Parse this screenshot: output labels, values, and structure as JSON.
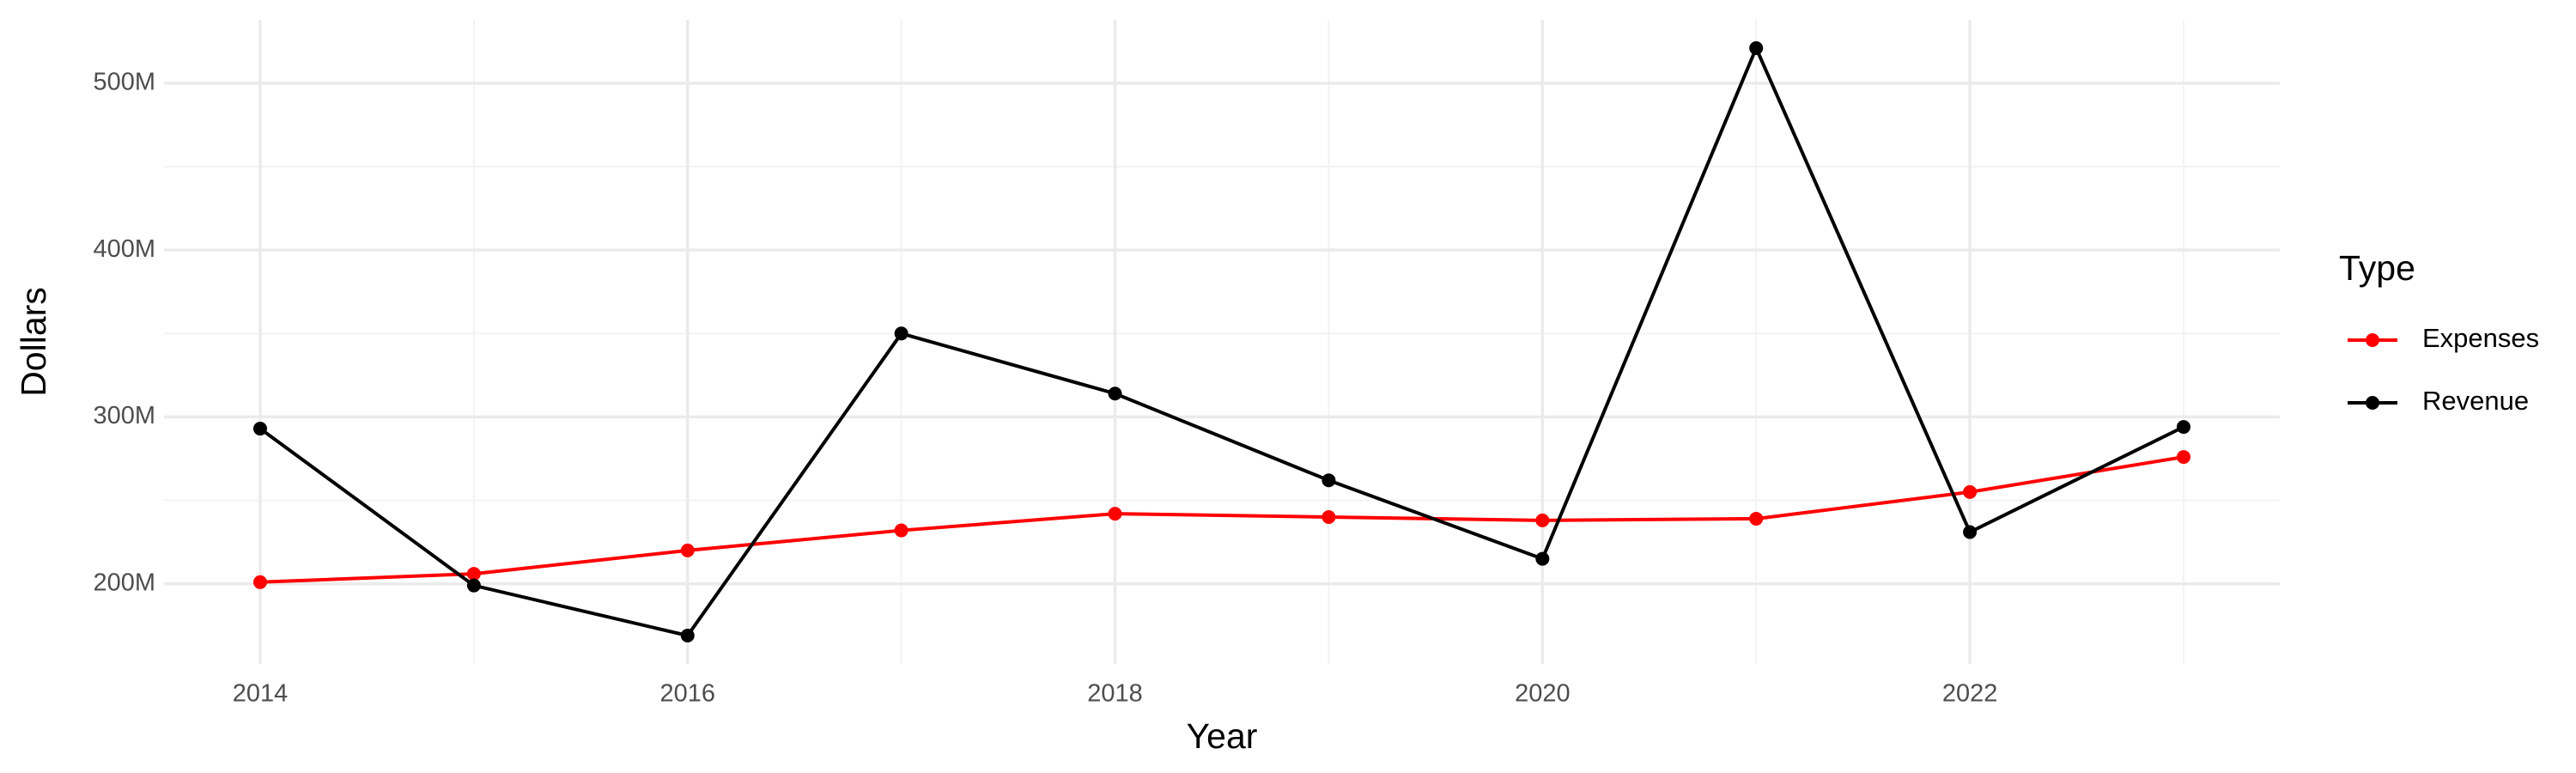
{
  "chart_data": {
    "type": "line",
    "x_label": "Year",
    "y_label": "Dollars",
    "legend_title": "Type",
    "legend_position": "right",
    "x": [
      2014,
      2015,
      2016,
      2017,
      2018,
      2019,
      2020,
      2021,
      2022,
      2023
    ],
    "series": [
      {
        "name": "Expenses",
        "color": "#ff0000",
        "values": [
          201000000,
          206000000,
          220000000,
          232000000,
          242000000,
          240000000,
          238000000,
          239000000,
          255000000,
          276000000
        ]
      },
      {
        "name": "Revenue",
        "color": "#000000",
        "values": [
          293000000,
          199000000,
          169000000,
          350000000,
          314000000,
          262000000,
          215000000,
          521000000,
          231000000,
          294000000
        ]
      }
    ],
    "xlim": [
      2013.55,
      2023.45
    ],
    "xticks": [
      2014,
      2016,
      2018,
      2020,
      2022
    ],
    "ylim": [
      152000000,
      538000000
    ],
    "yticks": [
      {
        "value": 200000000,
        "label": "200M"
      },
      {
        "value": 300000000,
        "label": "300M"
      },
      {
        "value": 400000000,
        "label": "400M"
      },
      {
        "value": 500000000,
        "label": "500M"
      }
    ],
    "grid": true
  }
}
